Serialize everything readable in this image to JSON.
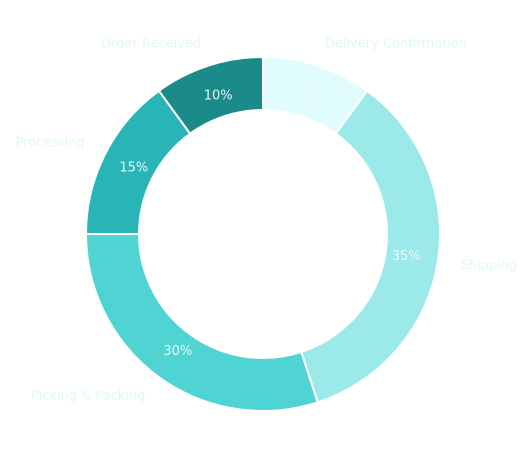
{
  "chart_data": {
    "type": "pie",
    "variant": "donut",
    "title": "",
    "start_angle_deg": 0,
    "direction": "clockwise",
    "slices": [
      {
        "label": "Delivery Confirmation",
        "value": 10,
        "value_label": "10%",
        "color": "#e0fcfd"
      },
      {
        "label": "Shipping",
        "value": 35,
        "value_label": "35%",
        "color": "#9ce9ea"
      },
      {
        "label": "Picking & Packing",
        "value": 30,
        "value_label": "30%",
        "color": "#4fd3d3"
      },
      {
        "label": "Processing",
        "value": 15,
        "value_label": "15%",
        "color": "#29b5b7"
      },
      {
        "label": "Order Received",
        "value": 10,
        "value_label": "10%",
        "color": "#1a8b88"
      }
    ]
  }
}
